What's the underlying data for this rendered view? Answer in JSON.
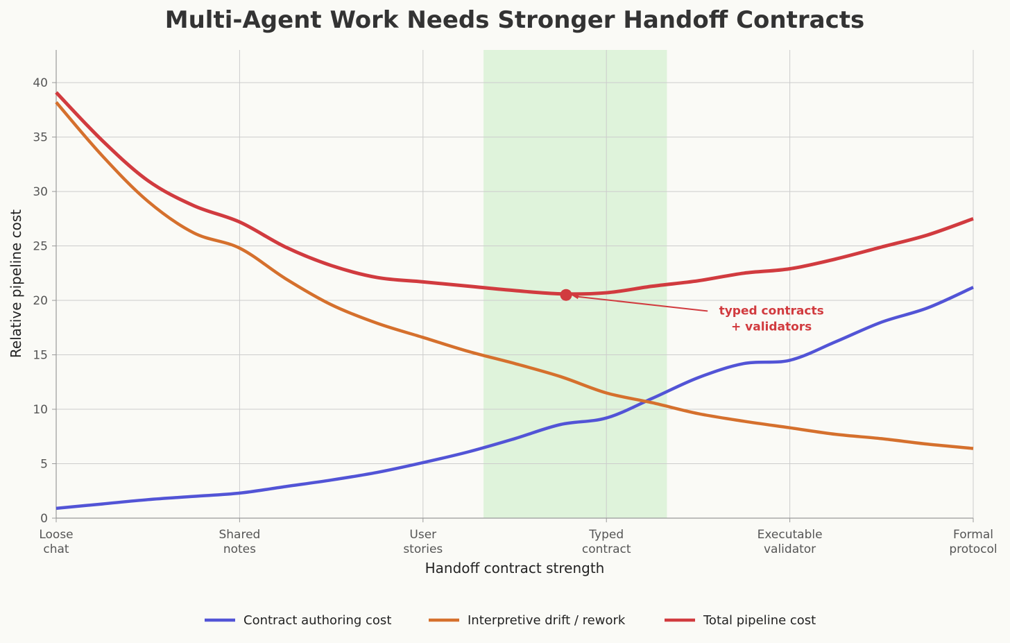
{
  "chart_data": {
    "type": "line",
    "title": "Multi-Agent Work Needs Stronger Handoff Contracts",
    "xlabel": "Handoff contract strength",
    "ylabel": "Relative pipeline cost",
    "xlim": [
      0,
      5
    ],
    "ylim": [
      0,
      43
    ],
    "yticks": [
      0,
      5,
      10,
      15,
      20,
      25,
      30,
      35,
      40
    ],
    "grid": true,
    "legend_position": "bottom-center",
    "categories": [
      "Loose chat",
      "Shared notes",
      "User stories",
      "Typed contract",
      "Executable validator",
      "Formal protocol"
    ],
    "x": [
      0,
      0.25,
      0.5,
      0.75,
      1,
      1.25,
      1.5,
      1.75,
      2,
      2.25,
      2.5,
      2.75,
      3,
      3.25,
      3.5,
      3.75,
      4,
      4.25,
      4.5,
      4.75,
      5
    ],
    "series": [
      {
        "name": "Contract authoring cost",
        "color": "#5254d6",
        "values": [
          0.9,
          1.3,
          1.7,
          2.0,
          2.3,
          2.9,
          3.5,
          4.2,
          5.1,
          6.1,
          7.3,
          8.6,
          9.2,
          11.0,
          12.9,
          14.2,
          14.5,
          16.2,
          18.0,
          19.3,
          21.2
        ]
      },
      {
        "name": "Interpretive drift / rework",
        "color": "#d5702d",
        "values": [
          38.2,
          33.3,
          29.1,
          26.2,
          24.8,
          22.0,
          19.6,
          17.9,
          16.6,
          15.3,
          14.2,
          13.0,
          11.5,
          10.6,
          9.6,
          8.9,
          8.3,
          7.7,
          7.3,
          6.8,
          6.4
        ]
      },
      {
        "name": "Total pipeline cost",
        "color": "#d13b3f",
        "values": [
          39.1,
          34.7,
          31.0,
          28.7,
          27.2,
          24.9,
          23.2,
          22.1,
          21.7,
          21.3,
          20.9,
          20.6,
          20.7,
          21.3,
          21.8,
          22.5,
          22.9,
          23.8,
          24.9,
          26.0,
          27.5
        ]
      }
    ],
    "highlight_band": {
      "x_from": 2.33,
      "x_to": 3.33,
      "color": "#d5f0d2"
    },
    "annotation": {
      "text_line1": "typed contracts",
      "text_line2": "+ validators",
      "point_x": 2.78,
      "point_y": 20.5,
      "text_x": 3.9,
      "text_y": 18.0,
      "color": "#d13b3f"
    }
  }
}
